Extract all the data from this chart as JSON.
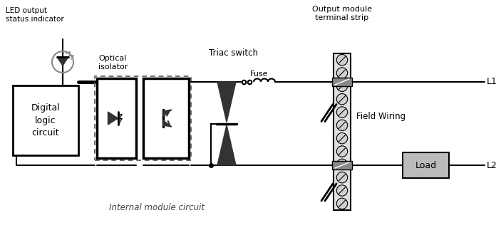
{
  "bg_color": "#ffffff",
  "line_color": "#000000",
  "gray_color": "#888888",
  "light_gray": "#bbbbbb",
  "dark_fill": "#333333",
  "labels": {
    "led": "LED output\nstatus indicator",
    "optical": "Optical\nisolator",
    "triac": "Triac switch",
    "fuse": "Fuse",
    "output_module": "Output module\nterminal strip",
    "digital": "Digital\nlogic\ncircuit",
    "internal": "Internal module circuit",
    "field_wiring": "Field Wiring",
    "load": "Load",
    "L1": "L1",
    "L2": "L2"
  },
  "figsize": [
    6.96,
    3.51
  ],
  "dpi": 100
}
